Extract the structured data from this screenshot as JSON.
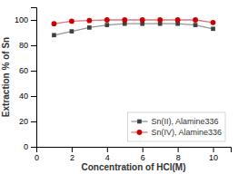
{
  "chart_data": {
    "type": "line",
    "xlabel": "Concentration of HCl(M)",
    "ylabel": "Extraction % of Sn",
    "x": [
      1,
      2,
      3,
      4,
      5,
      6,
      7,
      8,
      9,
      10
    ],
    "series": [
      {
        "name": "Sn(II), Alamine336",
        "color": "#404040",
        "marker": "square",
        "line_style": "solid",
        "values": [
          88,
          91,
          94,
          96,
          97,
          97,
          97,
          97,
          96,
          93
        ]
      },
      {
        "name": "Sn(IV), Alamine336",
        "color": "#cc0000",
        "marker": "circle",
        "line_style": "solid",
        "values": [
          97,
          99,
          99.5,
          100,
          100,
          100,
          100,
          100,
          100,
          98
        ]
      }
    ],
    "xlim": [
      0,
      11
    ],
    "ylim": [
      0,
      110
    ],
    "xticks": [
      0,
      2,
      4,
      6,
      8,
      10
    ],
    "yticks": [
      0,
      20,
      40,
      60,
      80,
      100
    ],
    "grid": false,
    "legend": "lower right"
  }
}
